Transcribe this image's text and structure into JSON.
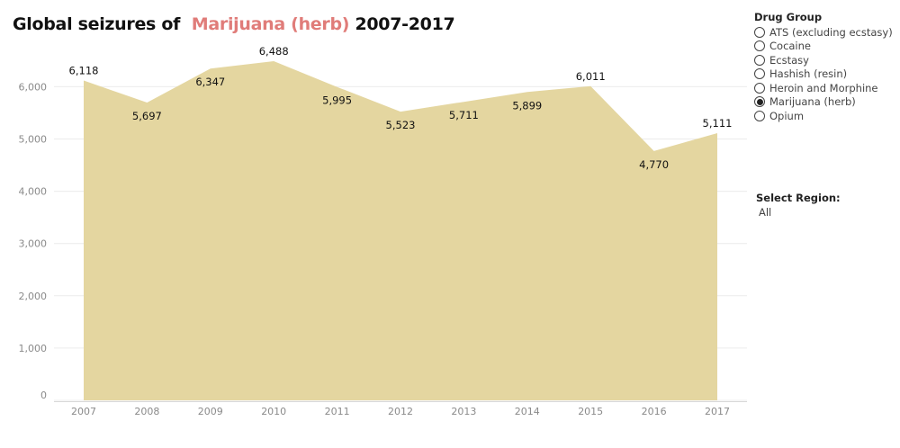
{
  "title": {
    "prefix": "Global seizures of",
    "highlight": "Marijuana (herb)",
    "suffix": "2007-2017"
  },
  "colors": {
    "area": "#e4d6a0",
    "highlight": "#e07c79",
    "grid": "#ececec",
    "axis_text": "#8a8a8a"
  },
  "chart_data": {
    "type": "area",
    "title": "Global seizures of Marijuana (herb) 2007-2017",
    "xlabel": "",
    "ylabel": "",
    "x": [
      "2007",
      "2008",
      "2009",
      "2010",
      "2011",
      "2012",
      "2013",
      "2014",
      "2015",
      "2016",
      "2017"
    ],
    "values": [
      6118,
      5697,
      6347,
      6488,
      5995,
      5523,
      5711,
      5899,
      6011,
      4770,
      5111
    ],
    "data_labels": [
      "6,118",
      "5,697",
      "6,347",
      "6,488",
      "5,995",
      "5,523",
      "5,711",
      "5,899",
      "6,011",
      "4,770",
      "5,111"
    ],
    "ylim": [
      0,
      7000
    ],
    "yticks": [
      0,
      1000,
      2000,
      3000,
      4000,
      5000,
      6000
    ],
    "ytick_labels": [
      "0",
      "1,000",
      "2,000",
      "3,000",
      "4,000",
      "5,000",
      "6,000"
    ],
    "grid": true,
    "legend": "none"
  },
  "filters": {
    "drug_group": {
      "label": "Drug Group",
      "options": [
        {
          "label": "ATS (excluding ecstasy)",
          "selected": false
        },
        {
          "label": "Cocaine",
          "selected": false
        },
        {
          "label": "Ecstasy",
          "selected": false
        },
        {
          "label": "Hashish (resin)",
          "selected": false
        },
        {
          "label": "Heroin and Morphine",
          "selected": false
        },
        {
          "label": "Marijuana (herb)",
          "selected": true
        },
        {
          "label": "Opium",
          "selected": false
        }
      ]
    },
    "region": {
      "label": "Select Region:",
      "value": "All"
    }
  }
}
